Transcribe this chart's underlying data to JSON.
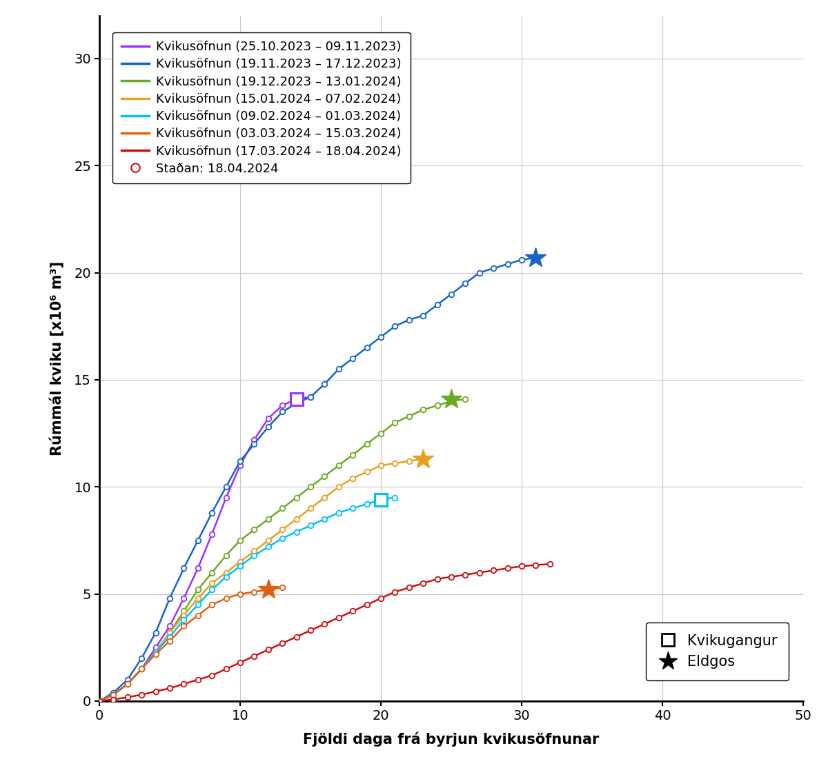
{
  "series": [
    {
      "label": "Kvikusöfnun (25.10.2023 – 09.11.2023)",
      "color": "#9B30FF",
      "days": [
        0,
        1,
        2,
        3,
        4,
        5,
        6,
        7,
        8,
        9,
        10,
        11,
        12,
        13,
        14,
        15
      ],
      "values": [
        0,
        0.3,
        0.8,
        1.5,
        2.5,
        3.5,
        4.8,
        6.2,
        7.8,
        9.5,
        11.0,
        12.2,
        13.2,
        13.8,
        14.1,
        14.2
      ],
      "square_day": 14,
      "square_val": 14.1,
      "star_day": null,
      "star_val": null
    },
    {
      "label": "Kvikusöfnun (19.11.2023 – 17.12.2023)",
      "color": "#1465C8",
      "days": [
        0,
        1,
        2,
        3,
        4,
        5,
        6,
        7,
        8,
        9,
        10,
        11,
        12,
        13,
        14,
        15,
        16,
        17,
        18,
        19,
        20,
        21,
        22,
        23,
        24,
        25,
        26,
        27,
        28,
        29,
        30,
        31
      ],
      "values": [
        0,
        0.4,
        1.0,
        2.0,
        3.2,
        4.8,
        6.2,
        7.5,
        8.8,
        10.0,
        11.2,
        12.0,
        12.8,
        13.5,
        13.9,
        14.2,
        14.8,
        15.5,
        16.0,
        16.5,
        17.0,
        17.5,
        17.8,
        18.0,
        18.5,
        19.0,
        19.5,
        20.0,
        20.2,
        20.4,
        20.6,
        20.7
      ],
      "square_day": null,
      "square_val": null,
      "star_day": 31,
      "star_val": 20.7
    },
    {
      "label": "Kvikusöfnun (19.12.2023 – 13.01.2024)",
      "color": "#6BAA25",
      "days": [
        0,
        1,
        2,
        3,
        4,
        5,
        6,
        7,
        8,
        9,
        10,
        11,
        12,
        13,
        14,
        15,
        16,
        17,
        18,
        19,
        20,
        21,
        22,
        23,
        24,
        25,
        26
      ],
      "values": [
        0,
        0.3,
        0.8,
        1.5,
        2.3,
        3.2,
        4.2,
        5.2,
        6.0,
        6.8,
        7.5,
        8.0,
        8.5,
        9.0,
        9.5,
        10.0,
        10.5,
        11.0,
        11.5,
        12.0,
        12.5,
        13.0,
        13.3,
        13.6,
        13.8,
        14.0,
        14.1
      ],
      "square_day": null,
      "square_val": null,
      "star_day": 25,
      "star_val": 14.1
    },
    {
      "label": "Kvikusöfnun (15.01.2024 – 07.02.2024)",
      "color": "#E8A020",
      "days": [
        0,
        1,
        2,
        3,
        4,
        5,
        6,
        7,
        8,
        9,
        10,
        11,
        12,
        13,
        14,
        15,
        16,
        17,
        18,
        19,
        20,
        21,
        22,
        23
      ],
      "values": [
        0,
        0.3,
        0.8,
        1.5,
        2.3,
        3.2,
        4.0,
        4.8,
        5.5,
        6.0,
        6.5,
        7.0,
        7.5,
        8.0,
        8.5,
        9.0,
        9.5,
        10.0,
        10.4,
        10.7,
        11.0,
        11.1,
        11.2,
        11.3
      ],
      "square_day": null,
      "square_val": null,
      "star_day": 23,
      "star_val": 11.3
    },
    {
      "label": "Kvikusöfnun (09.02.2024 – 01.03.2024)",
      "color": "#00BFFF",
      "days": [
        0,
        1,
        2,
        3,
        4,
        5,
        6,
        7,
        8,
        9,
        10,
        11,
        12,
        13,
        14,
        15,
        16,
        17,
        18,
        19,
        20,
        21
      ],
      "values": [
        0,
        0.3,
        0.8,
        1.5,
        2.3,
        3.0,
        3.8,
        4.5,
        5.2,
        5.8,
        6.3,
        6.8,
        7.2,
        7.6,
        7.9,
        8.2,
        8.5,
        8.8,
        9.0,
        9.2,
        9.4,
        9.5
      ],
      "square_day": 20,
      "square_val": 9.4,
      "star_day": null,
      "star_val": null
    },
    {
      "label": "Kvikusöfnun (03.03.2024 – 15.03.2024)",
      "color": "#E06010",
      "days": [
        0,
        1,
        2,
        3,
        4,
        5,
        6,
        7,
        8,
        9,
        10,
        11,
        12,
        13
      ],
      "values": [
        0,
        0.3,
        0.8,
        1.5,
        2.2,
        2.8,
        3.5,
        4.0,
        4.5,
        4.8,
        5.0,
        5.1,
        5.2,
        5.3
      ],
      "square_day": null,
      "square_val": null,
      "star_day": 12,
      "star_val": 5.2
    },
    {
      "label": "Kvikusöfnun (17.03.2024 – 18.04.2024)",
      "color": "#CC1010",
      "days": [
        0,
        1,
        2,
        3,
        4,
        5,
        6,
        7,
        8,
        9,
        10,
        11,
        12,
        13,
        14,
        15,
        16,
        17,
        18,
        19,
        20,
        21,
        22,
        23,
        24,
        25,
        26,
        27,
        28,
        29,
        30,
        31,
        32
      ],
      "values": [
        0,
        0.08,
        0.18,
        0.3,
        0.45,
        0.6,
        0.8,
        1.0,
        1.2,
        1.5,
        1.8,
        2.1,
        2.4,
        2.7,
        3.0,
        3.3,
        3.6,
        3.9,
        4.2,
        4.5,
        4.8,
        5.1,
        5.3,
        5.5,
        5.7,
        5.8,
        5.9,
        6.0,
        6.1,
        6.2,
        6.3,
        6.35,
        6.4
      ],
      "square_day": null,
      "square_val": null,
      "star_day": null,
      "star_val": null
    }
  ],
  "xlabel": "Fjöldi daga frá byrjun kvikusöfnunar",
  "ylabel": "Rúmmál kviku [x10⁶ m³]",
  "xlim": [
    0,
    50
  ],
  "ylim": [
    0,
    32
  ],
  "xticks": [
    0,
    10,
    20,
    30,
    40,
    50
  ],
  "yticks": [
    0,
    5,
    10,
    15,
    20,
    25,
    30
  ],
  "grid_color": "#C8C8C8",
  "bg_color": "#FFFFFF",
  "fontsize_legend": 13,
  "fontsize_axis": 15,
  "fontsize_ticks": 14
}
